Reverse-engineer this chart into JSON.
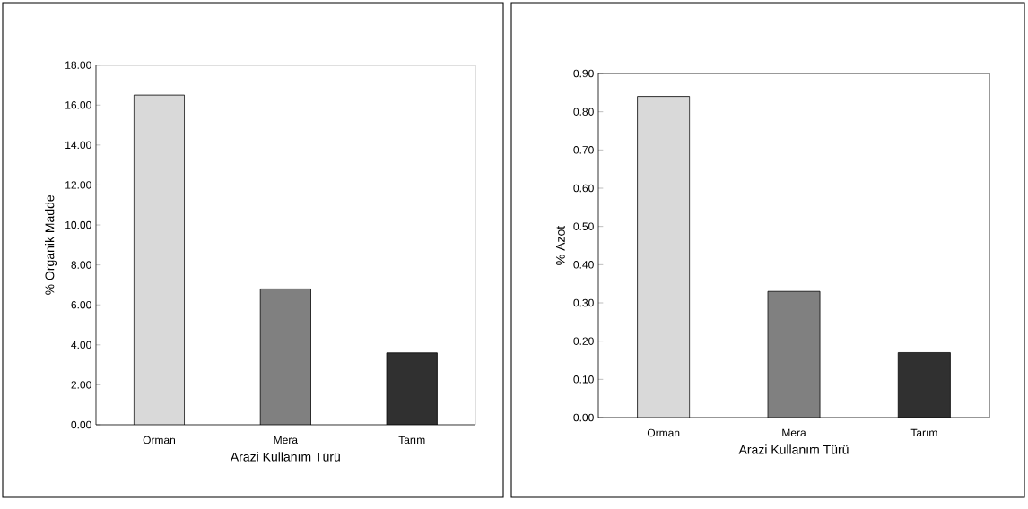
{
  "chart_data": [
    {
      "type": "bar",
      "categories": [
        "Orman",
        "Mera",
        "Tarım"
      ],
      "values": [
        16.5,
        6.8,
        3.6
      ],
      "colors": [
        "#d9d9d9",
        "#808080",
        "#303030"
      ],
      "xlabel": "Arazi Kullanım Türü",
      "ylabel": "% Organik Madde",
      "ylim": [
        0,
        18
      ],
      "yticks": [
        {
          "value": 0,
          "label": "0.00"
        },
        {
          "value": 2,
          "label": "2.00"
        },
        {
          "value": 4,
          "label": "4.00"
        },
        {
          "value": 6,
          "label": "6.00"
        },
        {
          "value": 8,
          "label": "8.00"
        },
        {
          "value": 10,
          "label": "10.00"
        },
        {
          "value": 12,
          "label": "12.00"
        },
        {
          "value": 14,
          "label": "14.00"
        },
        {
          "value": 16,
          "label": "16.00"
        },
        {
          "value": 18,
          "label": "18.00"
        }
      ],
      "grid": false
    },
    {
      "type": "bar",
      "categories": [
        "Orman",
        "Mera",
        "Tarım"
      ],
      "values": [
        0.84,
        0.33,
        0.17
      ],
      "colors": [
        "#d9d9d9",
        "#808080",
        "#303030"
      ],
      "xlabel": "Arazi Kullanım Türü",
      "ylabel": "% Azot",
      "ylim": [
        0,
        0.9
      ],
      "yticks": [
        {
          "value": 0,
          "label": "0.00"
        },
        {
          "value": 0.1,
          "label": "0.10"
        },
        {
          "value": 0.2,
          "label": "0.20"
        },
        {
          "value": 0.3,
          "label": "0.30"
        },
        {
          "value": 0.4,
          "label": "0.40"
        },
        {
          "value": 0.5,
          "label": "0.50"
        },
        {
          "value": 0.6,
          "label": "0.60"
        },
        {
          "value": 0.7,
          "label": "0.70"
        },
        {
          "value": 0.8,
          "label": "0.80"
        },
        {
          "value": 0.9,
          "label": "0.90"
        }
      ],
      "grid": false
    }
  ]
}
